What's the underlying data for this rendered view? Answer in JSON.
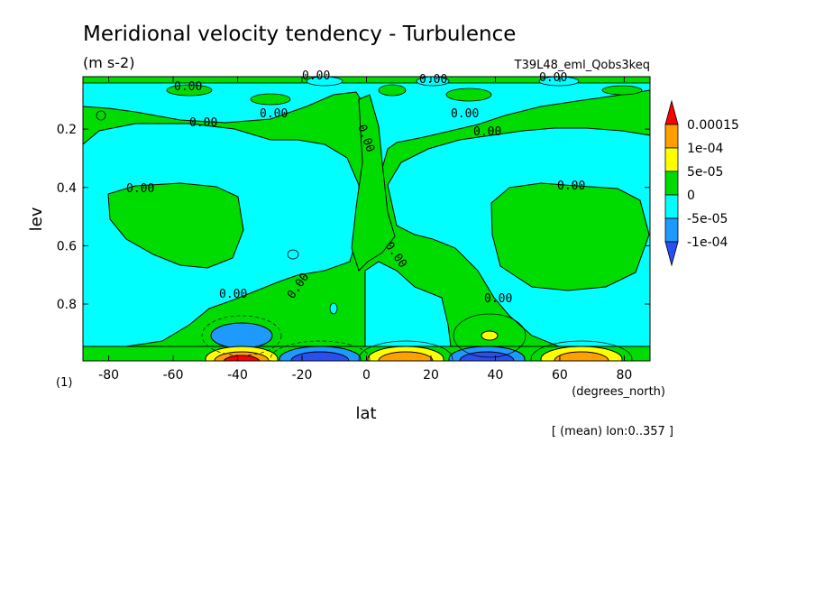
{
  "chart_data": {
    "type": "heatmap",
    "title": "Meridional velocity tendency - Turbulence",
    "units": "(m s-2)",
    "run_label": "T39L48_eml_Qobs3keq",
    "xlabel": "lat",
    "x_units": "(degrees_north)",
    "ylabel": "lev",
    "y_units": "(1)",
    "mean_note": "[ (mean) lon:0..357 ]",
    "xlim": [
      -88,
      88
    ],
    "ylim": [
      0.995,
      0.02
    ],
    "x_ticks": [
      -80,
      -60,
      -40,
      -20,
      0,
      20,
      40,
      60,
      80
    ],
    "x_tick_labels": [
      "-80",
      "-60",
      "-40",
      "-20",
      "0",
      "20",
      "40",
      "60",
      "80"
    ],
    "y_ticks": [
      0.2,
      0.4,
      0.6,
      0.8
    ],
    "y_tick_labels": [
      "0.2",
      "0.4",
      "0.6",
      "0.8"
    ],
    "levels": [
      -0.0001,
      -5e-05,
      0,
      5e-05,
      0.0001,
      0.00015
    ],
    "colorbar_labels": [
      "0.00015",
      "1e-04",
      "5e-05",
      "0",
      "-5e-05",
      "-1e-04"
    ],
    "colors": [
      "#2a4ff0",
      "#1e9aff",
      "#00ffff",
      "#00dc00",
      "#ffff00",
      "#ffa000",
      "#ff0000"
    ],
    "contour_label": "0.00",
    "features": [
      {
        "lat": -40,
        "lev": 0.985,
        "value": 0.0002,
        "kind": "max"
      },
      {
        "lat": -40,
        "lev": 0.93,
        "value": -8e-05,
        "kind": "min"
      },
      {
        "lat": -13,
        "lev": 0.985,
        "value": -0.00015,
        "kind": "min"
      },
      {
        "lat": 12,
        "lev": 0.985,
        "value": 0.00016,
        "kind": "max"
      },
      {
        "lat": 36,
        "lev": 0.985,
        "value": -0.00015,
        "kind": "min"
      },
      {
        "lat": 38,
        "lev": 0.9,
        "value": 7e-05,
        "kind": "max"
      },
      {
        "lat": 63,
        "lev": 0.985,
        "value": 0.00012,
        "kind": "max"
      }
    ]
  }
}
